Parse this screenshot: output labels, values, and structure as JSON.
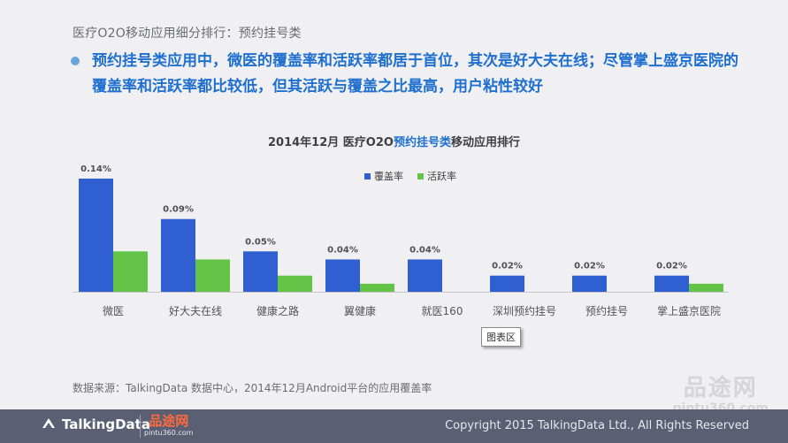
{
  "page": {
    "title": "医疗O2O移动应用细分排行：预约挂号类",
    "headline": "预约挂号类应用中，微医的覆盖率和活跃率都居于首位，其次是好大夫在线；尽管掌上盛京医院的覆盖率和活跃率都比较低，但其活跃与覆盖之比最高，用户粘性较好",
    "source": "数据来源：TalkingData 数据中心，2014年12月Android平台的应用覆盖率",
    "tooltip": "图表区",
    "watermark_cn": "品途网",
    "watermark_url": "pintu360.com",
    "footer_logo": "TalkingData",
    "footer_badge_cn": "品途网",
    "footer_badge_url": "pintu360.com",
    "copyright": "Copyright 2015 TalkingData Ltd., All Rights Reserved"
  },
  "chart_data": {
    "type": "bar",
    "title_prefix": "2014年12月 医疗O2O",
    "title_highlight": "预约挂号类",
    "title_suffix": "移动应用排行",
    "categories": [
      "微医",
      "好大夫在线",
      "健康之路",
      "翼健康",
      "就医160",
      "深圳预约挂号",
      "预约挂号",
      "掌上盛京医院"
    ],
    "series": [
      {
        "name": "覆盖率",
        "color": "#2f5fd0",
        "values": [
          0.14,
          0.09,
          0.05,
          0.04,
          0.04,
          0.02,
          0.02,
          0.02
        ],
        "labels": [
          "0.14%",
          "0.09%",
          "0.05%",
          "0.04%",
          "0.04%",
          "0.02%",
          "0.02%",
          "0.02%"
        ]
      },
      {
        "name": "活跃率",
        "color": "#63c346",
        "values": [
          0.05,
          0.04,
          0.02,
          0.01,
          0.0,
          0.0,
          0.0,
          0.01
        ]
      }
    ],
    "ylim": [
      0,
      0.14
    ],
    "legend_position": "top-center",
    "grid": false
  }
}
